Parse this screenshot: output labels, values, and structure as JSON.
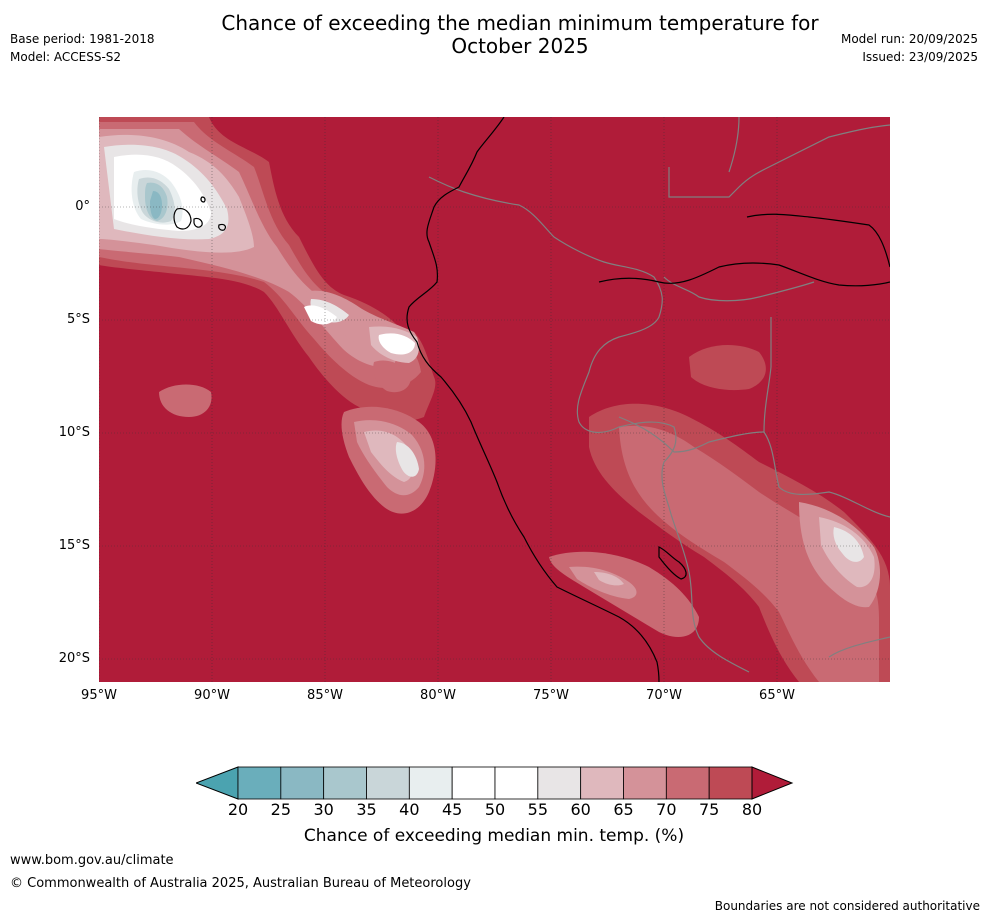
{
  "title_line1": "Chance of exceeding the median minimum temperature for",
  "title_line2": "October 2025",
  "base_period": "Base period: 1981-2018",
  "model": "Model: ACCESS-S2",
  "model_run": "Model run: 20/09/2025",
  "issued": "Issued: 23/09/2025",
  "lat_labels": [
    "0°",
    "5°S",
    "10°S",
    "15°S",
    "20°S"
  ],
  "lon_labels": [
    "95°W",
    "90°W",
    "85°W",
    "80°W",
    "75°W",
    "70°W",
    "65°W"
  ],
  "colorbar": {
    "ticks": [
      "20",
      "25",
      "30",
      "35",
      "40",
      "45",
      "50",
      "55",
      "60",
      "65",
      "70",
      "75",
      "80"
    ],
    "colors": [
      "#4ba3b0",
      "#6aaebb",
      "#8ab8c3",
      "#a9c7cd",
      "#c9d6d9",
      "#e8eeef",
      "#ffffff",
      "#ffffff",
      "#e8e5e6",
      "#dfb8bd",
      "#d49299",
      "#c96a73",
      "#be4a55",
      "#b01c39"
    ],
    "label": "Chance of exceeding median min. temp. (%)"
  },
  "footer_url": "www.bom.gov.au/climate",
  "footer_copyright": "© Commonwealth of Australia 2025, Australian Bureau of Meteorology",
  "footnote": "Boundaries are not considered authoritative",
  "map_colors": {
    "base": "#b01c39",
    "p75": "#be4a55",
    "p70": "#c96a73",
    "p65": "#d49299",
    "p60": "#dfb8bd",
    "p55": "#e8e5e6",
    "p50": "#ffffff",
    "p45": "#e8eeef",
    "p40": "#c9d6d9",
    "p35": "#a9c7cd",
    "p30": "#8ab8c3",
    "coast": "#000000",
    "border": "#808080"
  }
}
